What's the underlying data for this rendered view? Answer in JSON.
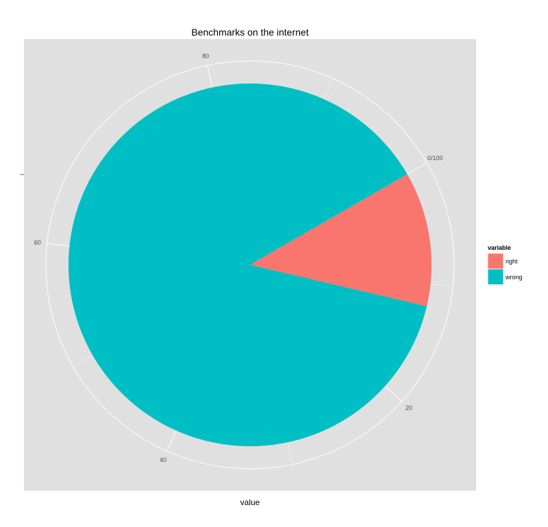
{
  "chart_data": {
    "type": "pie",
    "title": "Benchmarks on the internet",
    "xlabel": "value",
    "ylabel": "",
    "theta_ticks": [
      "0/100",
      "20",
      "40",
      "60",
      "80"
    ],
    "theta_range": [
      0,
      100
    ],
    "series": [
      {
        "name": "right",
        "value": 12,
        "color": "#F8766D"
      },
      {
        "name": "wrong",
        "value": 88,
        "color": "#00BFC4"
      }
    ],
    "legend": {
      "title": "variable",
      "position": "right"
    },
    "panel_background": "#E5E5E5",
    "grid": true
  }
}
